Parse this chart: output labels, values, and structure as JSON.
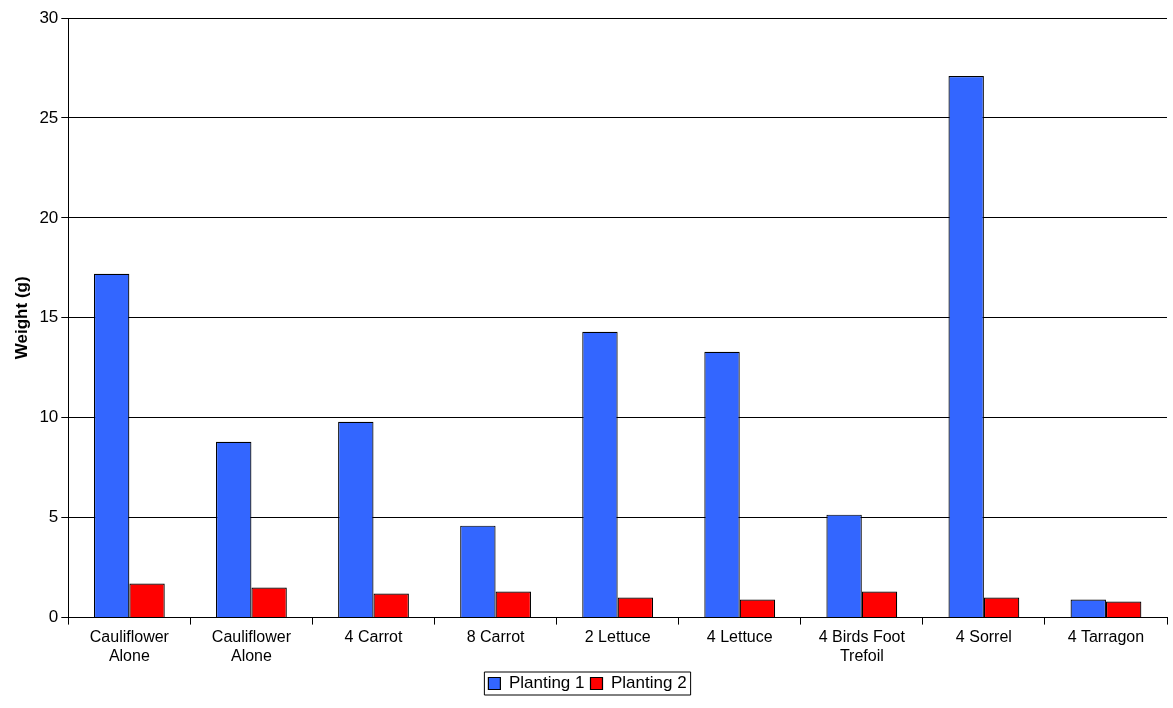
{
  "chart_data": {
    "type": "bar",
    "ylabel": "Weight (g)",
    "categories": [
      "Cauliflower Alone",
      "Cauliflower Alone",
      "4 Carrot",
      "8 Carrot",
      "2 Lettuce",
      "4 Lettuce",
      "4 Birds Foot Trefoil",
      "4 Sorrel",
      "4 Tarragon"
    ],
    "series": [
      {
        "name": "Planting 1",
        "color": "#3366ff",
        "values": [
          17.2,
          8.8,
          9.8,
          4.6,
          14.3,
          13.3,
          5.15,
          27.1,
          0.9
        ]
      },
      {
        "name": "Planting 2",
        "color": "#ff0000",
        "values": [
          1.7,
          1.5,
          1.2,
          1.3,
          1.0,
          0.9,
          1.3,
          1.0,
          0.8
        ]
      }
    ],
    "ylim": [
      0,
      30
    ],
    "yticks": [
      0,
      5,
      10,
      15,
      20,
      25,
      30
    ],
    "grid": "y",
    "legend": "bottom"
  }
}
